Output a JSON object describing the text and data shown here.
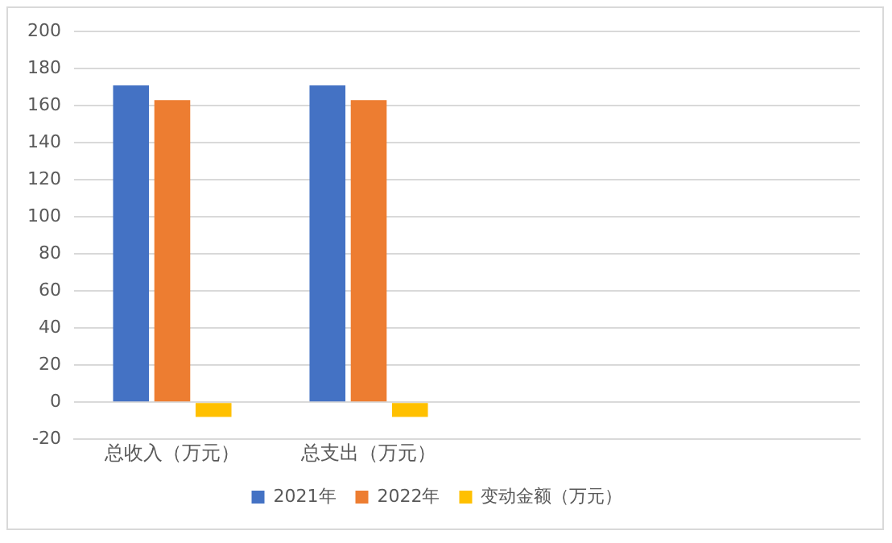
{
  "chart_data": {
    "type": "bar",
    "categories": [
      "总收入（万元）",
      "总支出（万元）",
      null,
      null
    ],
    "series": [
      {
        "name": "2021年",
        "color": "#4472c4",
        "values": [
          171,
          171,
          null,
          null
        ]
      },
      {
        "name": "2022年",
        "color": "#ed7d31",
        "values": [
          163,
          163,
          null,
          null
        ]
      },
      {
        "name": "变动金额（万元）",
        "color": "#ffc000",
        "values": [
          -8,
          -8,
          null,
          null
        ]
      }
    ],
    "ylim": [
      -20,
      200
    ],
    "yticks": [
      -20,
      0,
      20,
      40,
      60,
      80,
      100,
      120,
      140,
      160,
      180,
      200
    ],
    "grid": "y",
    "legend": "bottom"
  }
}
